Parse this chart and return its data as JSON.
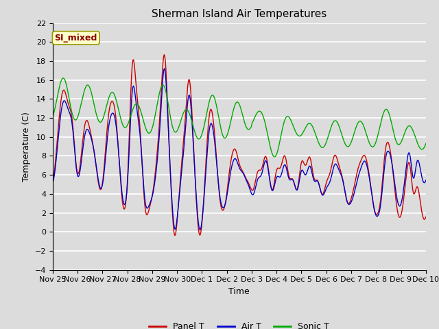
{
  "title": "Sherman Island Air Temperatures",
  "xlabel": "Time",
  "ylabel": "Temperature (C)",
  "ylim": [
    -4,
    22
  ],
  "yticks": [
    -4,
    -2,
    0,
    2,
    4,
    6,
    8,
    10,
    12,
    14,
    16,
    18,
    20,
    22
  ],
  "background_color": "#dcdcdc",
  "title_fontsize": 11,
  "label_fontsize": 9,
  "tick_fontsize": 8,
  "annotation_text": "SI_mixed",
  "annotation_color": "#8b0000",
  "annotation_bg": "#ffffcc",
  "line_colors": {
    "panel": "#cc0000",
    "air": "#0000cc",
    "sonic": "#00aa00"
  },
  "legend_labels": [
    "Panel T",
    "Air T",
    "Sonic T"
  ],
  "x_tick_labels": [
    "Nov 25",
    "Nov 26",
    "Nov 27",
    "Nov 28",
    "Nov 29",
    "Nov 30",
    "Dec 1",
    "Dec 2",
    "Dec 3",
    "Dec 4",
    "Dec 5",
    "Dec 6",
    "Dec 7",
    "Dec 8",
    "Dec 9",
    "Dec 10"
  ]
}
